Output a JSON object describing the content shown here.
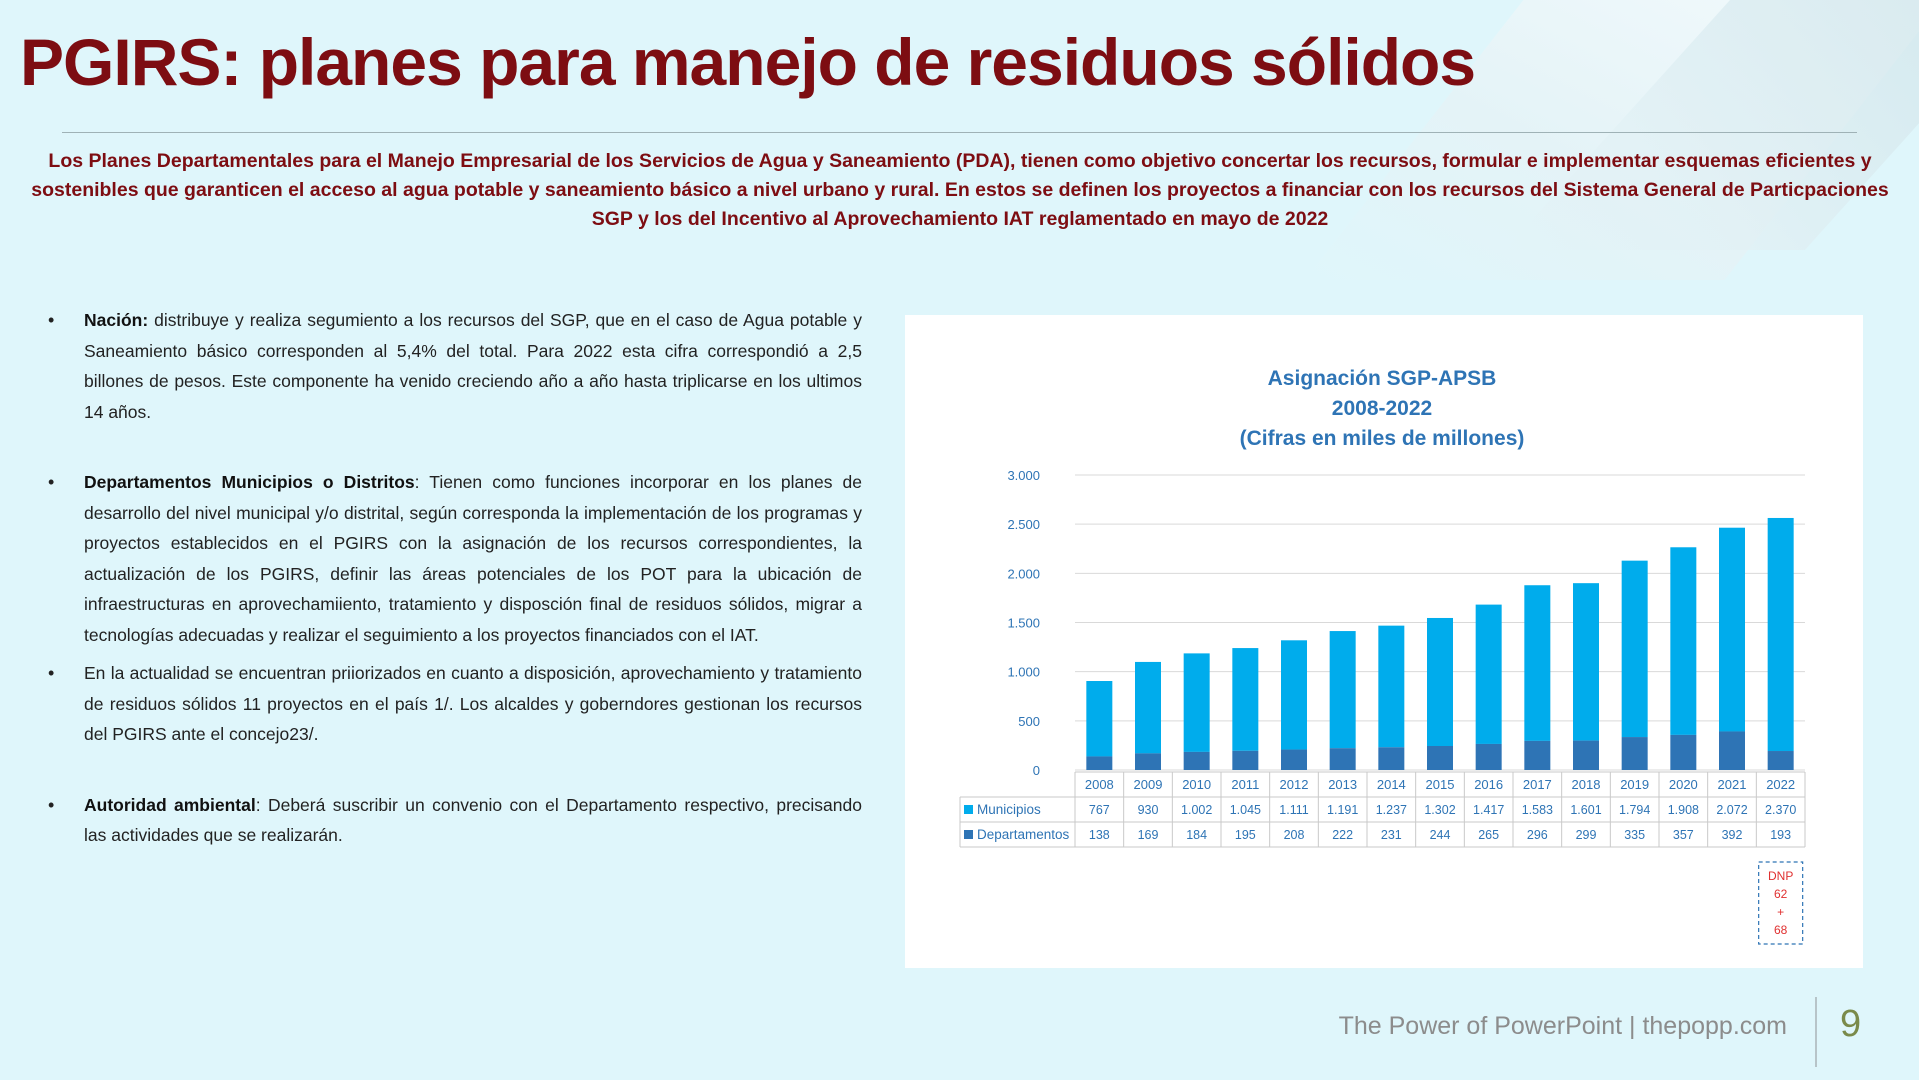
{
  "slide": {
    "title": "PGIRS: planes para manejo de residuos sólidos",
    "intro": "Los Planes Departamentales para el Manejo Empresarial de los Servicios de Agua y Saneamiento (PDA), tienen como objetivo concertar los recursos, formular e implementar esquemas eficientes y sostenibles que garanticen el acceso al agua potable y saneamiento básico a nivel urbano y rural. En estos se definen los proyectos a financiar con los recursos del Sistema General de Particpaciones SGP y los del Incentivo al Aprovechamiento IAT reglamentado en mayo de 2022",
    "bullets": [
      {
        "label": "Nación:",
        "text": " distribuye y realiza segumiento a los recursos del SGP, que en el caso de Agua potable y Saneamiento básico corresponden al 5,4% del total. Para 2022 esta cifra correspondió a 2,5 billones de pesos. Este componente ha venido creciendo año a año hasta triplicarse en los ultimos 14 años."
      },
      {
        "label": "Departamentos Municipios o Distritos",
        "text": ": Tienen como  funciones incorporar en los planes de desarrollo del nivel municipal y/o distrital, según corresponda la implementación de los programas y proyectos establecidos en el PGIRS con la asignación de los recursos correspondientes, la actualización de los PGIRS, definir las áreas potenciales de los POT para la ubicación de infraestructuras en aprovechamiiento, tratamiento y disposción final de residuos sólidos, migrar a tecnologías adecuadas y realizar el seguimiento a los proyectos financiados con el IAT."
      },
      {
        "label": "",
        "text": "En la actualidad se encuentran priiorizados en cuanto a  disposición, aprovechamiento y tratamiento de residuos sólidos 11 proyectos en el país 1/. Los alcaldes y goberndores gestionan los recursos del PGIRS ante el concejo23/."
      },
      {
        "label": "Autoridad ambiental",
        "text": ": Deberá suscribir un convenio con el Departamento respectivo, precisando las actividades que se realizarán."
      }
    ],
    "footer": "The Power of PowerPoint | thepopp.com",
    "page_number": "9"
  },
  "colors": {
    "title": "#7d0d12",
    "municipios": "#00acec",
    "departamentos": "#2e74b5",
    "chart_title": "#2e74b5",
    "dnp_note": "#e03030"
  },
  "chart_data": {
    "type": "bar",
    "stacked": true,
    "title": [
      "Asignación SGP-APSB",
      "2008-2022",
      "(Cifras en miles de millones)"
    ],
    "categories": [
      "2008",
      "2009",
      "2010",
      "2011",
      "2012",
      "2013",
      "2014",
      "2015",
      "2016",
      "2017",
      "2018",
      "2019",
      "2020",
      "2021",
      "2022"
    ],
    "series": [
      {
        "name": "Departamentos",
        "values": [
          138,
          169,
          184,
          195,
          208,
          222,
          231,
          244,
          265,
          296,
          299,
          335,
          357,
          392,
          193
        ],
        "labels": [
          "138",
          "169",
          "184",
          "195",
          "208",
          "222",
          "231",
          "244",
          "265",
          "296",
          "299",
          "335",
          "357",
          "392",
          "193"
        ]
      },
      {
        "name": "Municipios",
        "values": [
          767,
          930,
          1002,
          1045,
          1111,
          1191,
          1237,
          1302,
          1417,
          1583,
          1601,
          1794,
          1908,
          2072,
          2370
        ],
        "labels": [
          "767",
          "930",
          "1.002",
          "1.045",
          "1.111",
          "1.191",
          "1.237",
          "1.302",
          "1.417",
          "1.583",
          "1.601",
          "1.794",
          "1.908",
          "2.072",
          "2.370"
        ]
      }
    ],
    "ylim": [
      0,
      3000
    ],
    "yticks": [
      0,
      500,
      1000,
      1500,
      2000,
      2500,
      3000
    ],
    "ytick_labels": [
      "0",
      "500",
      "1.000",
      "1.500",
      "2.000",
      "2.500",
      "3.000"
    ],
    "grid": true,
    "legend": "data-table",
    "annotation": {
      "category": "2022",
      "lines": [
        "DNP",
        "62",
        "+",
        "68"
      ]
    }
  }
}
